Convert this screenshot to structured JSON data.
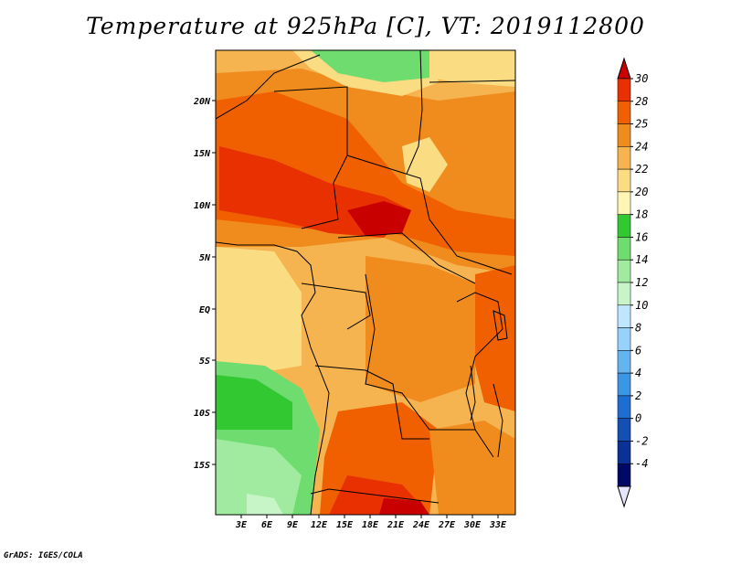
{
  "title": "Temperature at 925hPa [C], VT: 2019112800",
  "credit": "GrADS: IGES/COLA",
  "map": {
    "lat_labels": [
      "20N",
      "15N",
      "10N",
      "5N",
      "EQ",
      "5S",
      "10S",
      "15S"
    ],
    "lon_labels": [
      "3E",
      "6E",
      "9E",
      "12E",
      "15E",
      "18E",
      "21E",
      "24E",
      "27E",
      "30E",
      "33E"
    ]
  },
  "colorbar": {
    "labels": [
      "30",
      "28",
      "25",
      "24",
      "22",
      "20",
      "18",
      "16",
      "14",
      "12",
      "10",
      "8",
      "6",
      "4",
      "2",
      "0",
      "-2",
      "-4"
    ],
    "colors": [
      "#c80000",
      "#e83000",
      "#f06000",
      "#f08c1e",
      "#f5b450",
      "#fadc82",
      "#fff5b4",
      "#32c832",
      "#6edc6e",
      "#a0eba0",
      "#c8f5c8",
      "#bee6ff",
      "#96d2fa",
      "#64b4f0",
      "#3c96e6",
      "#1e6ed2",
      "#1450b4",
      "#0a3296",
      "#000a64",
      "#e6e6fa"
    ]
  }
}
